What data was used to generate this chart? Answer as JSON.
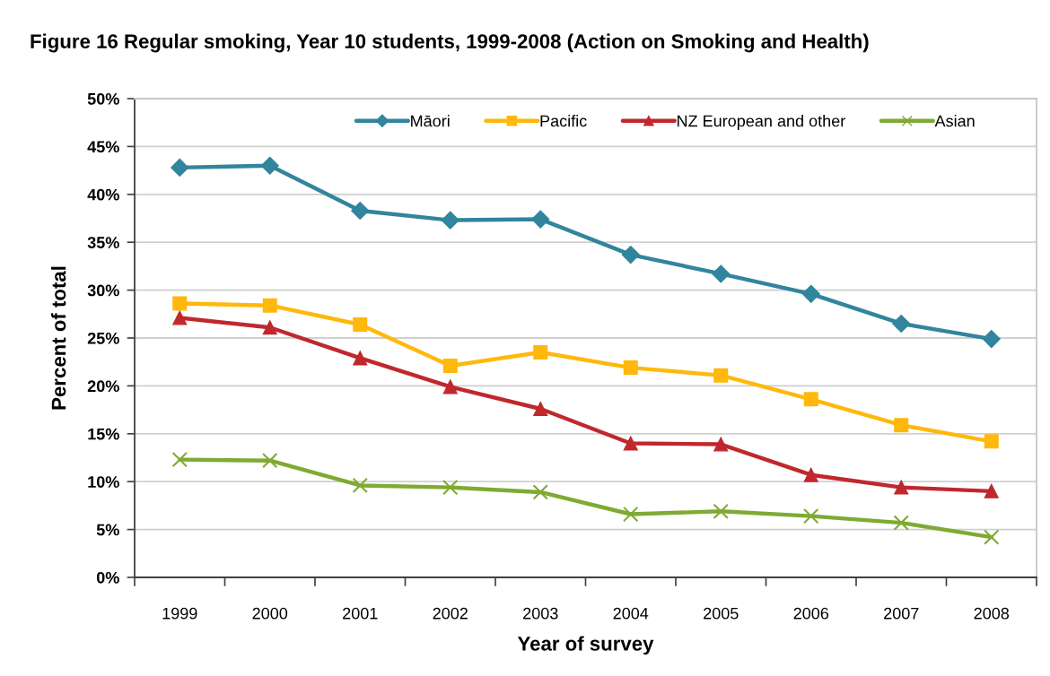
{
  "chart_data": {
    "type": "line",
    "title": "Figure 16 Regular smoking, Year 10 students, 1999-2008 (Action on Smoking and Health)",
    "xlabel": "Year of survey",
    "ylabel": "Percent of total",
    "categories": [
      "1999",
      "2000",
      "2001",
      "2002",
      "2003",
      "2004",
      "2005",
      "2006",
      "2007",
      "2008"
    ],
    "series": [
      {
        "name": "Māori",
        "color": "#31859c",
        "marker": "diamond",
        "values": [
          42.8,
          43.0,
          38.3,
          37.3,
          37.4,
          33.7,
          31.7,
          29.6,
          26.5,
          24.9
        ]
      },
      {
        "name": "Pacific",
        "color": "#ffb80b",
        "marker": "square",
        "values": [
          28.6,
          28.4,
          26.4,
          22.1,
          23.5,
          21.9,
          21.1,
          18.6,
          15.9,
          14.2
        ]
      },
      {
        "name": "NZ European and other",
        "color": "#c0282d",
        "marker": "triangle",
        "values": [
          27.1,
          26.1,
          22.9,
          19.9,
          17.6,
          14.0,
          13.9,
          10.7,
          9.4,
          9.0
        ]
      },
      {
        "name": "Asian",
        "color": "#7faa33",
        "marker": "cross",
        "values": [
          12.3,
          12.2,
          9.6,
          9.4,
          8.9,
          6.6,
          6.9,
          6.4,
          5.7,
          4.2
        ]
      }
    ],
    "ylim": [
      0,
      50
    ],
    "yticks": [
      {
        "value": 0,
        "label": "0%"
      },
      {
        "value": 5,
        "label": "5%"
      },
      {
        "value": 10,
        "label": "10%"
      },
      {
        "value": 15,
        "label": "15%"
      },
      {
        "value": 20,
        "label": "20%"
      },
      {
        "value": 25,
        "label": "25%"
      },
      {
        "value": 30,
        "label": "30%"
      },
      {
        "value": 35,
        "label": "35%"
      },
      {
        "value": 40,
        "label": "40%"
      },
      {
        "value": 45,
        "label": "45%"
      },
      {
        "value": 50,
        "label": "50%"
      }
    ],
    "grid": "y",
    "legend": "top right",
    "line_style": "solid"
  }
}
